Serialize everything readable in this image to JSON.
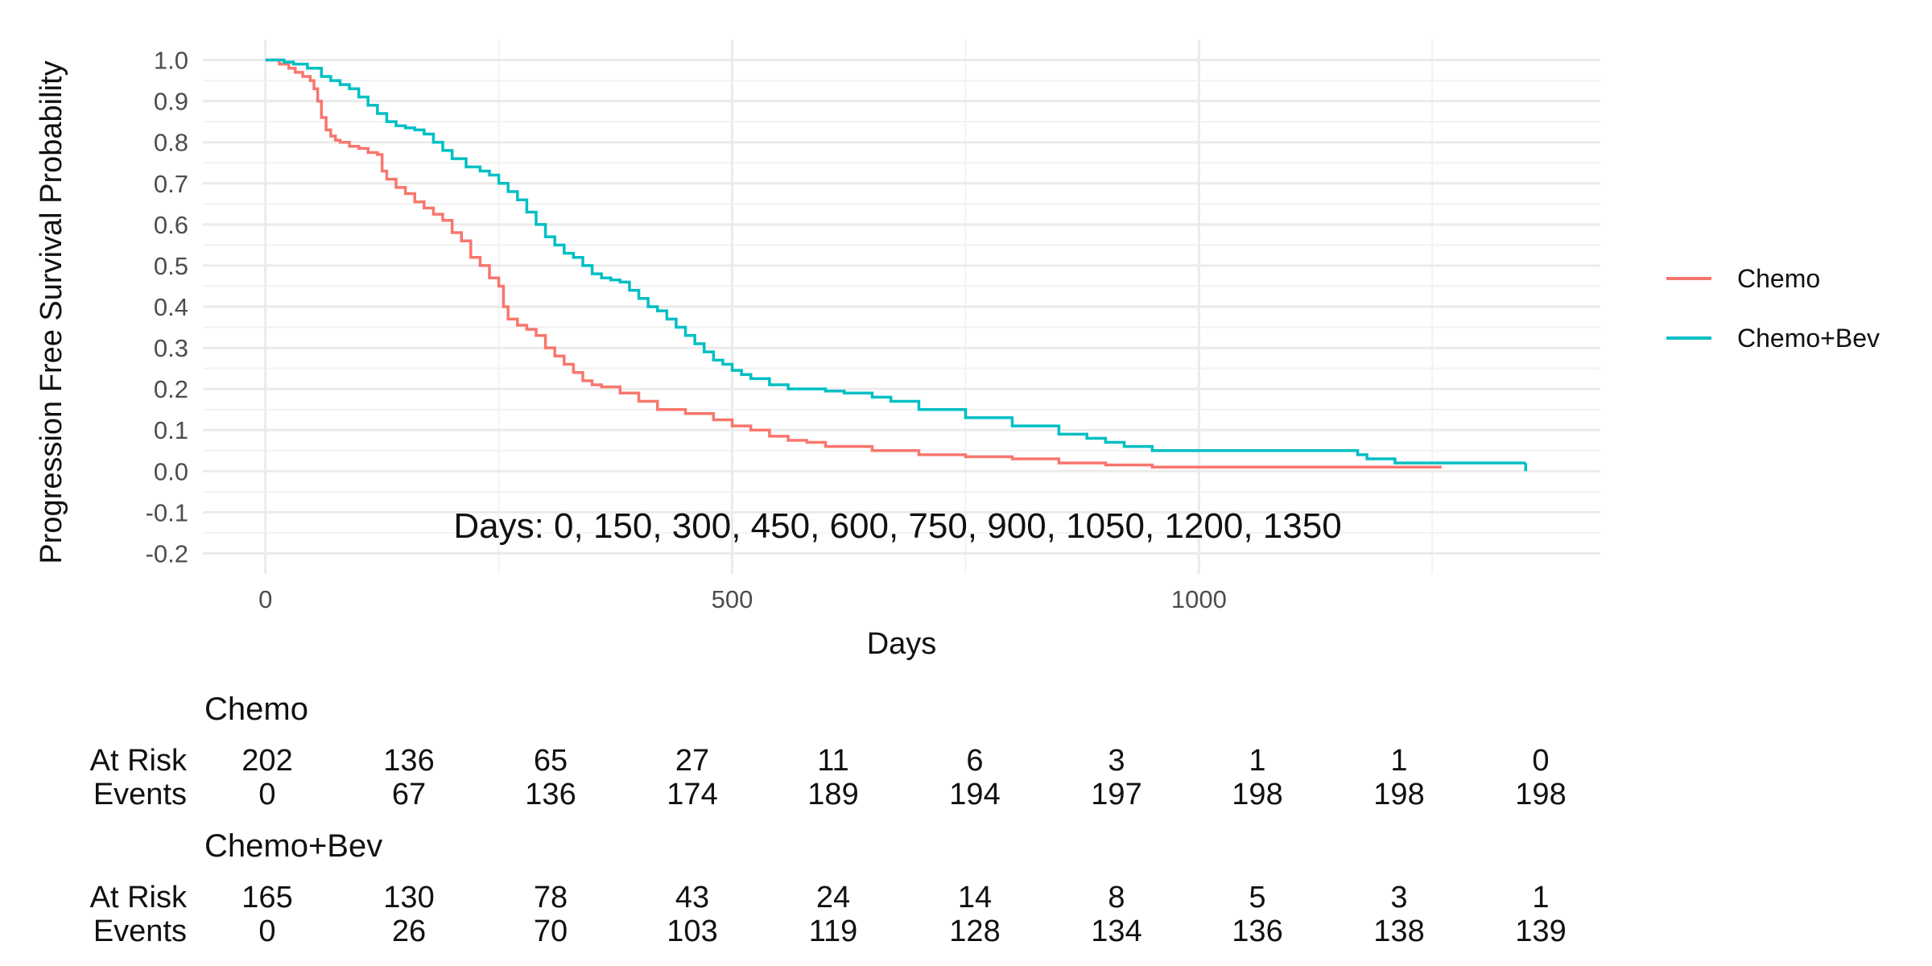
{
  "chart_data": {
    "type": "line",
    "step": true,
    "xlabel": "Days",
    "ylabel": "Progression Free Survival Probability",
    "xlim": [
      -67,
      1430
    ],
    "ylim": [
      -0.25,
      1.05
    ],
    "x_ticks": [
      0,
      500,
      1000
    ],
    "x_tick_labels": [
      "0",
      "500",
      "1000"
    ],
    "y_ticks": [
      -0.2,
      -0.1,
      0.0,
      0.1,
      0.2,
      0.3,
      0.4,
      0.5,
      0.6,
      0.7,
      0.8,
      0.9,
      1.0
    ],
    "y_tick_labels": [
      "-0.2",
      "-0.1",
      "0.0",
      "0.1",
      "0.2",
      "0.3",
      "0.4",
      "0.5",
      "0.6",
      "0.7",
      "0.8",
      "0.9",
      "1.0"
    ],
    "grid": true,
    "legend_position": "right",
    "annotation": "Days: 0, 150, 300, 450, 600, 750, 900, 1050, 1200, 1350",
    "series": [
      {
        "name": "Chemo",
        "color": "#F8766D",
        "x": [
          0,
          15,
          25,
          32,
          40,
          48,
          52,
          56,
          60,
          65,
          70,
          75,
          80,
          90,
          100,
          110,
          120,
          125,
          130,
          140,
          150,
          160,
          170,
          180,
          190,
          200,
          210,
          220,
          230,
          240,
          250,
          255,
          260,
          270,
          280,
          290,
          300,
          310,
          320,
          330,
          340,
          350,
          360,
          380,
          400,
          420,
          450,
          480,
          500,
          520,
          540,
          560,
          580,
          600,
          650,
          700,
          750,
          800,
          850,
          900,
          950,
          1000,
          1100,
          1200,
          1260
        ],
        "y": [
          1.0,
          0.99,
          0.98,
          0.97,
          0.96,
          0.95,
          0.93,
          0.9,
          0.86,
          0.83,
          0.815,
          0.805,
          0.8,
          0.79,
          0.785,
          0.775,
          0.77,
          0.73,
          0.71,
          0.69,
          0.675,
          0.655,
          0.64,
          0.625,
          0.61,
          0.58,
          0.56,
          0.52,
          0.5,
          0.47,
          0.45,
          0.4,
          0.37,
          0.355,
          0.345,
          0.33,
          0.3,
          0.28,
          0.26,
          0.24,
          0.22,
          0.21,
          0.205,
          0.19,
          0.17,
          0.15,
          0.14,
          0.125,
          0.11,
          0.1,
          0.085,
          0.075,
          0.07,
          0.06,
          0.05,
          0.04,
          0.035,
          0.03,
          0.02,
          0.015,
          0.01,
          0.01,
          0.01,
          0.01,
          0.01
        ]
      },
      {
        "name": "Chemo+Bev",
        "color": "#00BFC4",
        "x": [
          0,
          20,
          30,
          45,
          60,
          70,
          80,
          90,
          100,
          110,
          120,
          130,
          140,
          150,
          160,
          170,
          180,
          190,
          200,
          215,
          230,
          240,
          250,
          260,
          270,
          280,
          290,
          300,
          310,
          320,
          330,
          340,
          350,
          360,
          370,
          380,
          390,
          400,
          410,
          420,
          430,
          440,
          450,
          460,
          470,
          480,
          490,
          500,
          510,
          520,
          540,
          560,
          600,
          620,
          650,
          670,
          700,
          750,
          800,
          850,
          880,
          900,
          920,
          950,
          1000,
          1100,
          1150,
          1170,
          1180,
          1210,
          1250,
          1300,
          1350
        ],
        "y": [
          1.0,
          0.995,
          0.99,
          0.98,
          0.96,
          0.95,
          0.94,
          0.93,
          0.91,
          0.89,
          0.87,
          0.85,
          0.84,
          0.835,
          0.83,
          0.82,
          0.8,
          0.78,
          0.76,
          0.74,
          0.73,
          0.72,
          0.7,
          0.68,
          0.66,
          0.63,
          0.6,
          0.57,
          0.55,
          0.53,
          0.52,
          0.5,
          0.48,
          0.47,
          0.465,
          0.46,
          0.44,
          0.42,
          0.4,
          0.39,
          0.37,
          0.35,
          0.33,
          0.31,
          0.29,
          0.27,
          0.26,
          0.245,
          0.235,
          0.225,
          0.21,
          0.2,
          0.195,
          0.19,
          0.18,
          0.17,
          0.15,
          0.13,
          0.11,
          0.09,
          0.08,
          0.07,
          0.06,
          0.05,
          0.05,
          0.05,
          0.05,
          0.04,
          0.03,
          0.02,
          0.02,
          0.02,
          0.02
        ]
      }
    ],
    "risk_table": {
      "columns": [
        0,
        150,
        300,
        450,
        600,
        750,
        900,
        1050,
        1200,
        1350
      ],
      "row_labels": [
        "At Risk",
        "Events"
      ],
      "groups": [
        {
          "name": "Chemo",
          "at_risk": [
            202,
            136,
            65,
            27,
            11,
            6,
            3,
            1,
            1,
            0
          ],
          "events": [
            0,
            67,
            136,
            174,
            189,
            194,
            197,
            198,
            198,
            198
          ]
        },
        {
          "name": "Chemo+Bev",
          "at_risk": [
            165,
            130,
            78,
            43,
            24,
            14,
            8,
            5,
            3,
            1
          ],
          "events": [
            0,
            26,
            70,
            103,
            119,
            128,
            134,
            136,
            138,
            139
          ]
        }
      ]
    }
  }
}
